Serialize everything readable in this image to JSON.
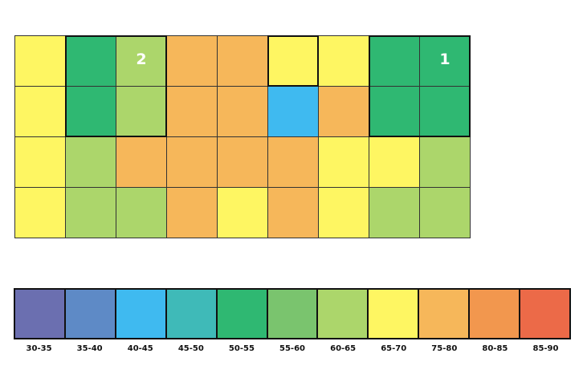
{
  "palette": {
    "30-35": "#6b6fb0",
    "35-40": "#5e8ac6",
    "40-45": "#3fbaf0",
    "45-50": "#3fbab8",
    "50-55": "#2fb872",
    "55-60": "#7ac46e",
    "60-65": "#acd66b",
    "65-70": "#fef662",
    "75-80": "#f6b75a",
    "80-85": "#f2974e",
    "85-90": "#ec6a48"
  },
  "grid": {
    "rows": [
      [
        {
          "bin": "65-70",
          "label": ""
        },
        {
          "bin": "50-55",
          "label": ""
        },
        {
          "bin": "60-65",
          "label": "2"
        },
        {
          "bin": "75-80",
          "label": ""
        },
        {
          "bin": "75-80",
          "label": ""
        },
        {
          "bin": "65-70",
          "label": ""
        },
        {
          "bin": "65-70",
          "label": ""
        },
        {
          "bin": "50-55",
          "label": ""
        },
        {
          "bin": "50-55",
          "label": "1"
        }
      ],
      [
        {
          "bin": "65-70",
          "label": ""
        },
        {
          "bin": "50-55",
          "label": ""
        },
        {
          "bin": "60-65",
          "label": ""
        },
        {
          "bin": "75-80",
          "label": ""
        },
        {
          "bin": "75-80",
          "label": ""
        },
        {
          "bin": "40-45",
          "label": ""
        },
        {
          "bin": "75-80",
          "label": ""
        },
        {
          "bin": "50-55",
          "label": ""
        },
        {
          "bin": "50-55",
          "label": ""
        }
      ],
      [
        {
          "bin": "65-70",
          "label": ""
        },
        {
          "bin": "60-65",
          "label": ""
        },
        {
          "bin": "75-80",
          "label": ""
        },
        {
          "bin": "75-80",
          "label": ""
        },
        {
          "bin": "75-80",
          "label": ""
        },
        {
          "bin": "75-80",
          "label": ""
        },
        {
          "bin": "65-70",
          "label": ""
        },
        {
          "bin": "65-70",
          "label": ""
        },
        {
          "bin": "60-65",
          "label": ""
        }
      ],
      [
        {
          "bin": "65-70",
          "label": ""
        },
        {
          "bin": "60-65",
          "label": ""
        },
        {
          "bin": "60-65",
          "label": ""
        },
        {
          "bin": "75-80",
          "label": ""
        },
        {
          "bin": "65-70",
          "label": ""
        },
        {
          "bin": "75-80",
          "label": ""
        },
        {
          "bin": "65-70",
          "label": ""
        },
        {
          "bin": "60-65",
          "label": ""
        },
        {
          "bin": "60-65",
          "label": ""
        }
      ]
    ],
    "zones": [
      {
        "col": 1,
        "row": 0,
        "cols": 2,
        "rows": 2
      },
      {
        "col": 5,
        "row": 0,
        "cols": 1,
        "rows": 1
      },
      {
        "col": 7,
        "row": 0,
        "cols": 2,
        "rows": 2
      }
    ]
  },
  "legend": {
    "items": [
      {
        "label": "30-35",
        "bin": "30-35"
      },
      {
        "label": "35-40",
        "bin": "35-40"
      },
      {
        "label": "40-45",
        "bin": "40-45"
      },
      {
        "label": "45-50",
        "bin": "45-50"
      },
      {
        "label": "50-55",
        "bin": "50-55"
      },
      {
        "label": "55-60",
        "bin": "55-60"
      },
      {
        "label": "60-65",
        "bin": "60-65"
      },
      {
        "label": "65-70",
        "bin": "65-70"
      },
      {
        "label": "75-80",
        "bin": "75-80"
      },
      {
        "label": "80-85",
        "bin": "80-85"
      },
      {
        "label": "85-90",
        "bin": "85-90"
      }
    ]
  }
}
